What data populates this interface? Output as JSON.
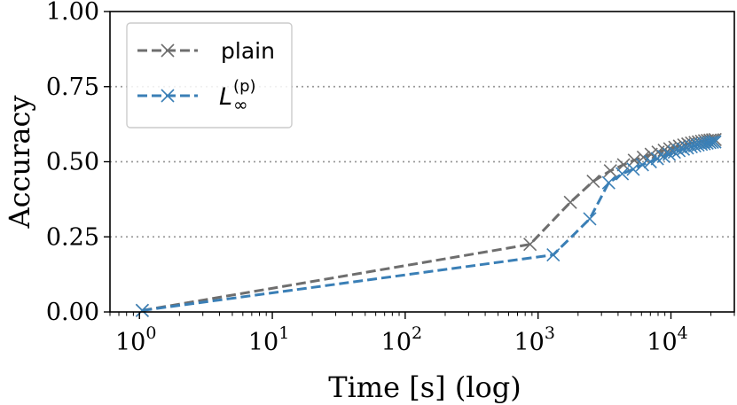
{
  "chart_data": {
    "type": "line",
    "title": "",
    "xlabel": "Time [s] (log)",
    "ylabel": "Accuracy",
    "xscale": "log",
    "xlim": [
      0.6,
      30000
    ],
    "ylim": [
      0.0,
      1.0
    ],
    "xticks": [
      {
        "value": 1,
        "base": "10",
        "exp": "0"
      },
      {
        "value": 10,
        "base": "10",
        "exp": "1"
      },
      {
        "value": 100,
        "base": "10",
        "exp": "2"
      },
      {
        "value": 1000,
        "base": "10",
        "exp": "3"
      },
      {
        "value": 10000,
        "base": "10",
        "exp": "4"
      }
    ],
    "yticks": [
      {
        "value": 0.0,
        "label": "0.00"
      },
      {
        "value": 0.25,
        "label": "0.25"
      },
      {
        "value": 0.5,
        "label": "0.50"
      },
      {
        "value": 0.75,
        "label": "0.75"
      },
      {
        "value": 1.0,
        "label": "1.00"
      }
    ],
    "grid": {
      "axis": "y",
      "style": "dotted",
      "values": [
        0.25,
        0.5,
        0.75
      ]
    },
    "legend_position": "top-left",
    "series": [
      {
        "name": "plain",
        "color": "#6e6e6e",
        "linestyle": "dashed",
        "marker": "x",
        "x": [
          1.05,
          870,
          1750,
          2600,
          3500,
          4400,
          5300,
          6200,
          7100,
          8000,
          8900,
          9800,
          10700,
          11600,
          12500,
          13400,
          14300,
          15200,
          16100,
          17000,
          17900,
          18800,
          19700,
          20600,
          21500
        ],
        "y": [
          0.005,
          0.225,
          0.365,
          0.435,
          0.47,
          0.49,
          0.505,
          0.515,
          0.525,
          0.532,
          0.538,
          0.543,
          0.548,
          0.552,
          0.556,
          0.559,
          0.562,
          0.564,
          0.566,
          0.568,
          0.57,
          0.571,
          0.572,
          0.573,
          0.574
        ]
      },
      {
        "name": "L∞(p)",
        "label_main": "L",
        "label_sub": "∞",
        "label_sup": "(p)",
        "color": "#3a7fb6",
        "linestyle": "dashed",
        "marker": "x",
        "x": [
          1.05,
          1300,
          2450,
          3400,
          4300,
          5200,
          6100,
          7000,
          7900,
          8800,
          9700,
          10600,
          11500,
          12400,
          13300,
          14200,
          15100,
          16000,
          16900,
          17800,
          18700,
          19600,
          20500,
          21400
        ],
        "y": [
          0.005,
          0.19,
          0.31,
          0.43,
          0.46,
          0.475,
          0.49,
          0.5,
          0.51,
          0.518,
          0.525,
          0.532,
          0.537,
          0.542,
          0.546,
          0.55,
          0.553,
          0.556,
          0.558,
          0.56,
          0.562,
          0.564,
          0.565,
          0.566
        ]
      }
    ]
  }
}
